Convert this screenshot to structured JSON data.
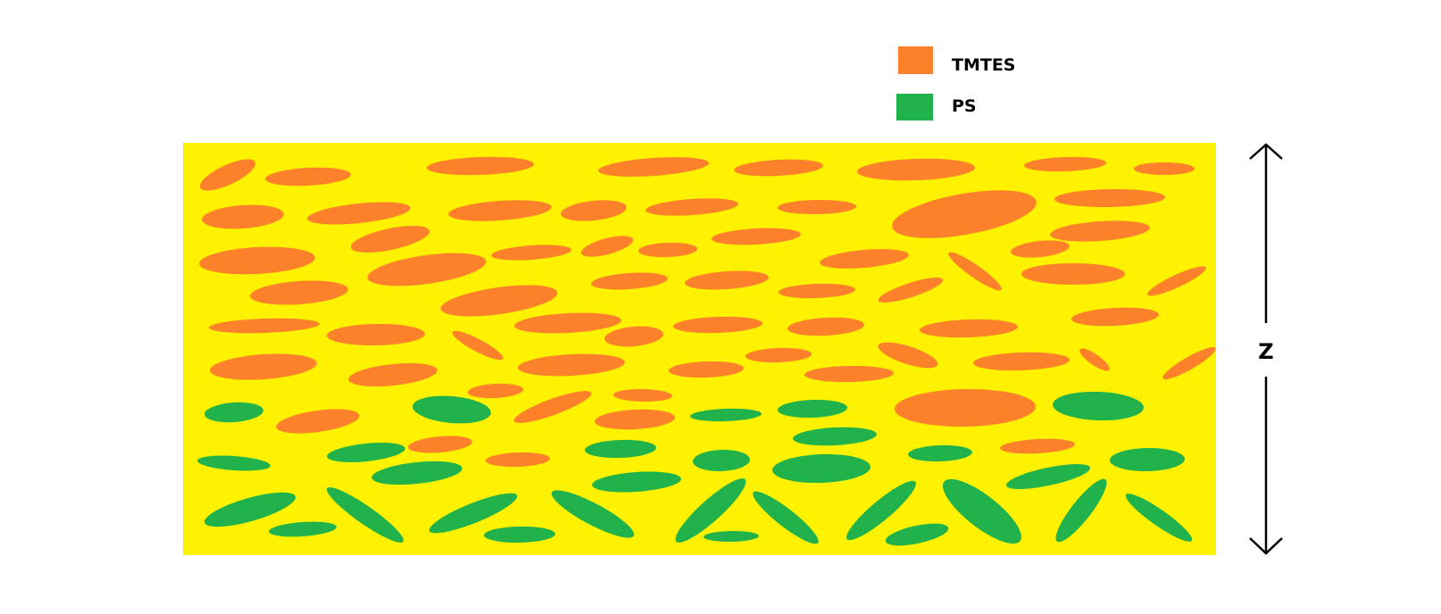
{
  "legend": {
    "items": [
      {
        "label": "TMTES",
        "color": "#fd812b"
      },
      {
        "label": "PS",
        "color": "#22b24c"
      }
    ]
  },
  "axis": {
    "label": "Z"
  },
  "colors": {
    "background": "#ffffff",
    "panel": "#fef200",
    "tmtes": "#fd812b",
    "ps": "#22b24c",
    "ink": "#000000"
  }
}
